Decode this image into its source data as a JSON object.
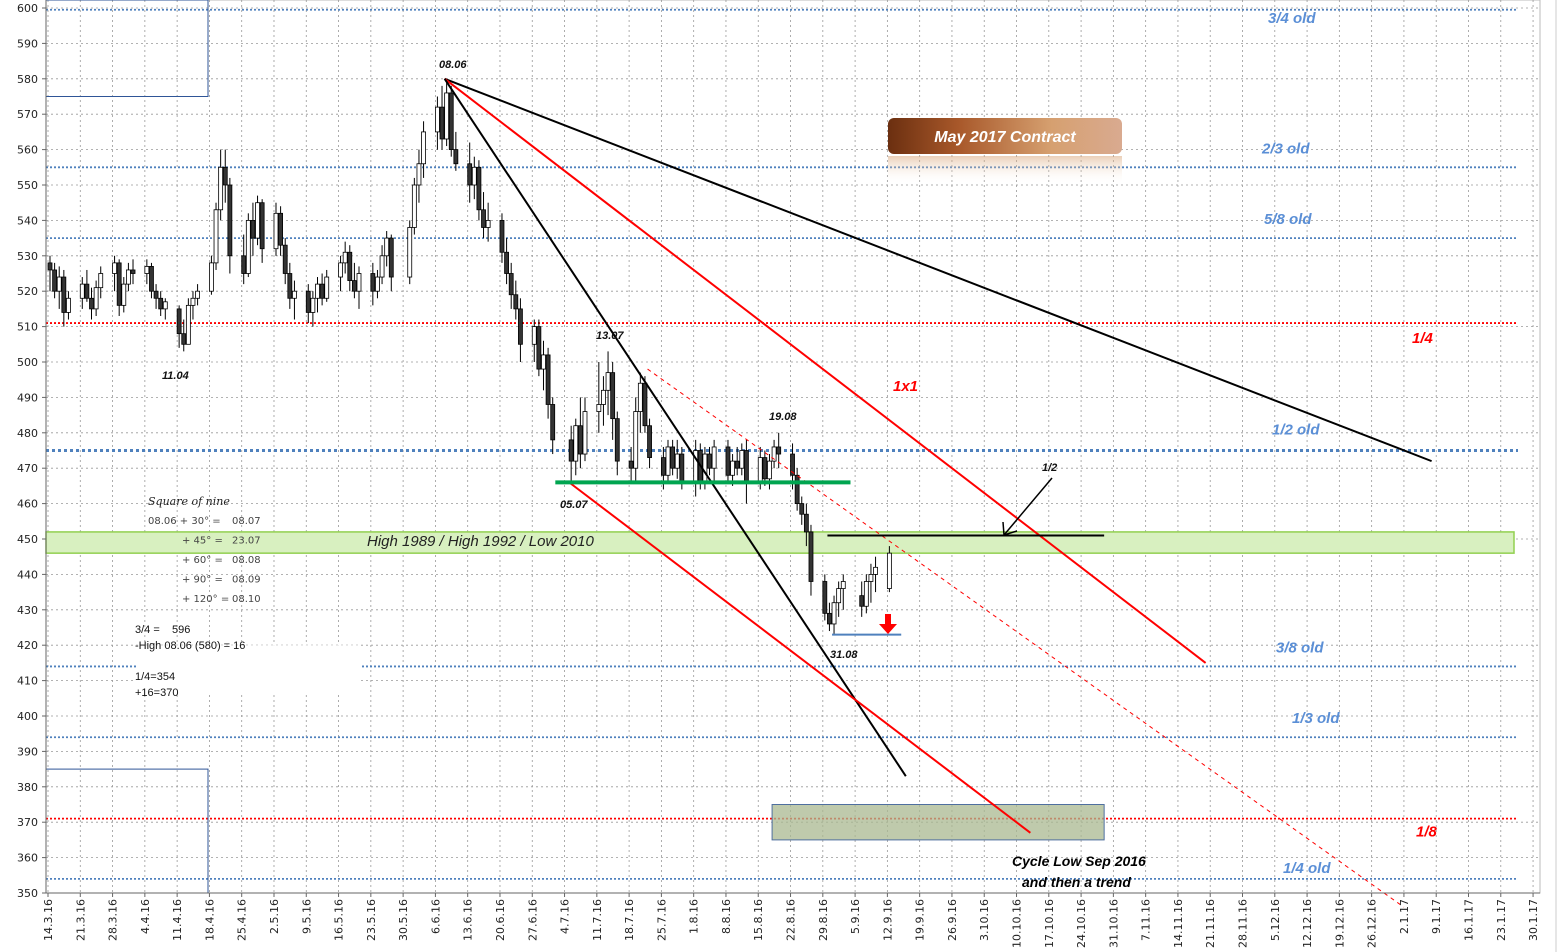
{
  "chart_data": {
    "type": "candlestick",
    "title": "May 2017 Contract",
    "ylim": [
      350,
      600
    ],
    "yticks": [
      350,
      360,
      370,
      380,
      390,
      400,
      410,
      420,
      430,
      440,
      450,
      460,
      470,
      480,
      490,
      500,
      510,
      520,
      530,
      540,
      550,
      560,
      570,
      580,
      590,
      600
    ],
    "xticks": [
      "14.3.16",
      "21.3.16",
      "28.3.16",
      "4.4.16",
      "11.4.16",
      "18.4.16",
      "25.4.16",
      "2.5.16",
      "9.5.16",
      "16.5.16",
      "23.5.16",
      "30.5.16",
      "6.6.16",
      "13.6.16",
      "20.6.16",
      "27.6.16",
      "4.7.16",
      "11.7.16",
      "18.7.16",
      "25.7.16",
      "1.8.16",
      "8.8.16",
      "15.8.16",
      "22.8.16",
      "29.8.16",
      "5.9.16",
      "12.9.16",
      "19.9.16",
      "26.9.16",
      "3.10.16",
      "10.10.16",
      "17.10.16",
      "24.10.16",
      "31.10.16",
      "7.11.16",
      "14.11.16",
      "21.11.16",
      "28.11.16",
      "5.12.16",
      "12.12.16",
      "19.12.16",
      "26.12.16",
      "2.1.17",
      "9.1.17",
      "16.1.17",
      "23.1.17",
      "30.1.17"
    ],
    "grid": true,
    "candles": [
      [
        "14.3.16",
        528,
        530,
        520,
        526
      ],
      [
        "15.3.16",
        526,
        528,
        518,
        520
      ],
      [
        "16.3.16",
        520,
        527,
        515,
        524
      ],
      [
        "17.3.16",
        524,
        526,
        510,
        514
      ],
      [
        "18.3.16",
        514,
        520,
        512,
        518
      ],
      [
        "21.3.16",
        518,
        524,
        515,
        522
      ],
      [
        "22.3.16",
        522,
        526,
        517,
        518
      ],
      [
        "23.3.16",
        518,
        521,
        512,
        515
      ],
      [
        "24.3.16",
        515,
        523,
        513,
        521
      ],
      [
        "25.3.16",
        521,
        527,
        518,
        525
      ],
      [
        "28.3.16",
        525,
        530,
        520,
        528
      ],
      [
        "29.3.16",
        528,
        529,
        513,
        516
      ],
      [
        "30.3.16",
        516,
        524,
        514,
        522
      ],
      [
        "31.3.16",
        522,
        528,
        520,
        526
      ],
      [
        "1.4.16",
        526,
        529,
        522,
        525
      ],
      [
        "4.4.16",
        525,
        529,
        522,
        527
      ],
      [
        "5.4.16",
        527,
        528,
        518,
        520
      ],
      [
        "6.4.16",
        520,
        522,
        515,
        518
      ],
      [
        "7.4.16",
        518,
        520,
        513,
        515
      ],
      [
        "8.4.16",
        515,
        518,
        512,
        517
      ],
      [
        "11.4.16",
        515,
        516,
        504,
        508
      ],
      [
        "12.4.16",
        508,
        512,
        503,
        505
      ],
      [
        "13.4.16",
        505,
        518,
        505,
        516
      ],
      [
        "14.4.16",
        516,
        520,
        512,
        518
      ],
      [
        "15.4.16",
        518,
        522,
        516,
        520
      ],
      [
        "18.4.16",
        520,
        530,
        519,
        528
      ],
      [
        "19.4.16",
        528,
        545,
        526,
        543
      ],
      [
        "20.4.16",
        543,
        560,
        540,
        555
      ],
      [
        "21.4.16",
        555,
        560,
        545,
        550
      ],
      [
        "22.4.16",
        550,
        552,
        525,
        530
      ],
      [
        "25.4.16",
        530,
        536,
        522,
        525
      ],
      [
        "26.4.16",
        525,
        542,
        524,
        540
      ],
      [
        "27.4.16",
        540,
        545,
        530,
        535
      ],
      [
        "28.4.16",
        535,
        547,
        533,
        545
      ],
      [
        "29.4.16",
        545,
        546,
        528,
        532
      ],
      [
        "2.5.16",
        532,
        545,
        530,
        542
      ],
      [
        "3.5.16",
        542,
        544,
        530,
        533
      ],
      [
        "4.5.16",
        533,
        535,
        522,
        525
      ],
      [
        "5.5.16",
        525,
        528,
        515,
        518
      ],
      [
        "6.5.16",
        518,
        523,
        512,
        520
      ],
      [
        "9.5.16",
        520,
        522,
        511,
        514
      ],
      [
        "10.5.16",
        514,
        520,
        510,
        518
      ],
      [
        "11.5.16",
        518,
        524,
        514,
        522
      ],
      [
        "12.5.16",
        522,
        525,
        516,
        518
      ],
      [
        "13.5.16",
        518,
        526,
        517,
        524
      ],
      [
        "16.5.16",
        524,
        530,
        520,
        528
      ],
      [
        "17.5.16",
        528,
        534,
        525,
        531
      ],
      [
        "18.5.16",
        531,
        533,
        520,
        523
      ],
      [
        "19.5.16",
        523,
        528,
        518,
        520
      ],
      [
        "20.5.16",
        520,
        527,
        515,
        525
      ],
      [
        "23.5.16",
        525,
        528,
        516,
        520
      ],
      [
        "24.5.16",
        520,
        526,
        518,
        524
      ],
      [
        "25.5.16",
        524,
        533,
        522,
        530
      ],
      [
        "26.5.16",
        530,
        537,
        527,
        535
      ],
      [
        "27.5.16",
        535,
        536,
        520,
        524
      ],
      [
        "31.5.16",
        524,
        540,
        522,
        538
      ],
      [
        "1.6.16",
        538,
        552,
        536,
        550
      ],
      [
        "2.6.16",
        550,
        560,
        545,
        556
      ],
      [
        "3.6.16",
        556,
        568,
        552,
        565
      ],
      [
        "6.6.16",
        565,
        575,
        560,
        572
      ],
      [
        "7.6.16",
        572,
        578,
        560,
        563
      ],
      [
        "8.6.16",
        563,
        580,
        561,
        576
      ],
      [
        "9.6.16",
        576,
        578,
        558,
        560
      ],
      [
        "10.6.16",
        560,
        565,
        554,
        556
      ],
      [
        "13.6.16",
        556,
        562,
        545,
        550
      ],
      [
        "14.6.16",
        550,
        558,
        546,
        555
      ],
      [
        "15.6.16",
        555,
        557,
        540,
        543
      ],
      [
        "16.6.16",
        543,
        548,
        535,
        538
      ],
      [
        "17.6.16",
        538,
        545,
        534,
        540
      ],
      [
        "20.6.16",
        540,
        542,
        528,
        531
      ],
      [
        "21.6.16",
        531,
        535,
        522,
        525
      ],
      [
        "22.6.16",
        525,
        528,
        515,
        519
      ],
      [
        "23.6.16",
        519,
        523,
        512,
        515
      ],
      [
        "24.6.16",
        515,
        518,
        500,
        505
      ],
      [
        "27.6.16",
        505,
        512,
        500,
        510
      ],
      [
        "28.6.16",
        510,
        512,
        496,
        498
      ],
      [
        "29.6.16",
        498,
        506,
        492,
        502
      ],
      [
        "30.6.16",
        502,
        504,
        484,
        488
      ],
      [
        "1.7.16",
        488,
        490,
        474,
        478
      ],
      [
        "5.7.16",
        478,
        482,
        466,
        472
      ],
      [
        "6.7.16",
        472,
        484,
        468,
        482
      ],
      [
        "7.7.16",
        482,
        490,
        470,
        474
      ],
      [
        "8.7.16",
        474,
        490,
        472,
        486
      ],
      [
        "11.7.16",
        486,
        500,
        480,
        488
      ],
      [
        "12.7.16",
        488,
        496,
        482,
        492
      ],
      [
        "13.7.16",
        492,
        503,
        485,
        497
      ],
      [
        "14.7.16",
        497,
        500,
        478,
        484
      ],
      [
        "15.7.16",
        484,
        486,
        468,
        472
      ],
      [
        "18.7.16",
        472,
        476,
        466,
        470
      ],
      [
        "19.7.16",
        470,
        490,
        466,
        486
      ],
      [
        "20.7.16",
        486,
        497,
        480,
        494
      ],
      [
        "21.7.16",
        494,
        496,
        480,
        482
      ],
      [
        "22.7.16",
        482,
        484,
        470,
        473
      ],
      [
        "25.7.16",
        473,
        476,
        464,
        468
      ],
      [
        "26.7.16",
        468,
        478,
        466,
        476
      ],
      [
        "27.7.16",
        476,
        478,
        468,
        470
      ],
      [
        "28.7.16",
        470,
        478,
        467,
        474
      ],
      [
        "29.7.16",
        474,
        476,
        464,
        466
      ],
      [
        "1.8.16",
        466,
        478,
        462,
        475
      ],
      [
        "2.8.16",
        475,
        477,
        464,
        466
      ],
      [
        "3.8.16",
        466,
        476,
        464,
        474
      ],
      [
        "4.8.16",
        474,
        476,
        468,
        470
      ],
      [
        "5.8.16",
        470,
        478,
        466,
        476
      ],
      [
        "8.8.16",
        476,
        478,
        466,
        468
      ],
      [
        "9.8.16",
        468,
        474,
        465,
        472
      ],
      [
        "10.8.16",
        472,
        476,
        468,
        470
      ],
      [
        "11.8.16",
        470,
        477,
        468,
        475
      ],
      [
        "12.8.16",
        475,
        478,
        460,
        466
      ],
      [
        "15.8.16",
        466,
        476,
        464,
        473
      ],
      [
        "16.8.16",
        473,
        475,
        465,
        467
      ],
      [
        "17.8.16",
        467,
        474,
        464,
        472
      ],
      [
        "18.8.16",
        472,
        478,
        470,
        476
      ],
      [
        "19.8.16",
        476,
        480,
        470,
        474
      ],
      [
        "22.8.16",
        474,
        477,
        464,
        468
      ],
      [
        "23.8.16",
        468,
        470,
        458,
        460
      ],
      [
        "24.8.16",
        460,
        462,
        454,
        457
      ],
      [
        "25.8.16",
        457,
        460,
        448,
        452
      ],
      [
        "26.8.16",
        452,
        454,
        434,
        438
      ],
      [
        "29.8.16",
        438,
        440,
        427,
        429
      ],
      [
        "30.8.16",
        429,
        432,
        424,
        426
      ],
      [
        "31.8.16",
        426,
        434,
        423,
        432
      ],
      [
        "1.9.16",
        432,
        438,
        428,
        436
      ],
      [
        "2.9.16",
        436,
        440,
        430,
        438
      ],
      [
        "6.9.16",
        434,
        438,
        428,
        431
      ],
      [
        "7.9.16",
        431,
        440,
        429,
        438
      ],
      [
        "8.9.16",
        438,
        443,
        432,
        440
      ],
      [
        "9.9.16",
        440,
        445,
        435,
        442
      ],
      [
        "12.9.16",
        436,
        448,
        435,
        446
      ]
    ],
    "levels": [
      {
        "label": "3/4 old",
        "value": 599.5,
        "color": "#4f81bd",
        "style": "dotted"
      },
      {
        "label": "2/3 old",
        "value": 555,
        "color": "#4f81bd",
        "style": "dotted"
      },
      {
        "label": "5/8 old",
        "value": 535,
        "color": "#4f81bd",
        "style": "dotted"
      },
      {
        "label": "1/4",
        "value": 511,
        "color": "#ff0000",
        "style": "dotted"
      },
      {
        "label": "1/2 old",
        "value": 475,
        "color": "#4f81bd",
        "style": "dotted-thick"
      },
      {
        "label": "3/8 old",
        "value": 414,
        "color": "#4f81bd",
        "style": "dotted"
      },
      {
        "label": "1/3 old",
        "value": 394,
        "color": "#4f81bd",
        "style": "dotted"
      },
      {
        "label": "1/8",
        "value": 371,
        "color": "#ff0000",
        "style": "dotted"
      },
      {
        "label": "1/4 old",
        "value": 354,
        "color": "#4f81bd",
        "style": "dotted"
      }
    ],
    "band": {
      "label": "High 1989 / High 1992 / Low 2010",
      "from": 446,
      "to": 452,
      "color": "#d8f0c0"
    },
    "trendlines": [
      {
        "from": [
          "8.6.16",
          580
        ],
        "to": [
          "8.1.17",
          472
        ],
        "color": "#000000"
      },
      {
        "from": [
          "8.6.16",
          580
        ],
        "to": [
          "20.11.16",
          415
        ],
        "color": "#ff0000",
        "label": "1x1"
      },
      {
        "from": [
          "8.6.16",
          580
        ],
        "to": [
          "16.9.16",
          383
        ],
        "color": "#000000"
      },
      {
        "from": [
          "5.7.16",
          466
        ],
        "to": [
          "13.10.16",
          367
        ],
        "color": "#ff0000"
      },
      {
        "from": [
          "22.7.16",
          498
        ],
        "to": [
          "2.1.17",
          346
        ],
        "color": "#ff0000",
        "dashed": true
      },
      {
        "from": [
          "2.7.16",
          466
        ],
        "to": [
          "4.9.16",
          466
        ],
        "color": "#00a550",
        "thick": true
      },
      {
        "from": [
          "30.8.16",
          451
        ],
        "to": [
          "29.10.16",
          451
        ],
        "color": "#000000"
      },
      {
        "from": [
          "31.8.16",
          423
        ],
        "to": [
          "15.9.16",
          423
        ],
        "color": "#4f81bd"
      }
    ],
    "target_box": {
      "from": [
        "18.8.16",
        365
      ],
      "to": [
        "29.10.16",
        375
      ]
    },
    "annotations": {
      "high": "08.06",
      "low_apr": "11.04",
      "jul13": "13.07",
      "jul05": "05.07",
      "aug19": "19.08",
      "aug31": "31.08",
      "half": "1/2",
      "cycle_1": "Cycle Low Sep 2016",
      "cycle_2": "and then a trend"
    },
    "square_of_nine": {
      "title": "Square of nine",
      "rows": [
        {
          "lhs": "08.06 + 30°",
          "rhs": "08.07",
          "red": true
        },
        {
          "lhs": "+ 45°",
          "rhs": "23.07",
          "red": true
        },
        {
          "lhs": "+ 60°",
          "rhs": "08.08",
          "red": true
        },
        {
          "lhs": "+ 90°",
          "rhs": "08.09",
          "red": false
        },
        {
          "lhs": "+ 120°",
          "rhs": "08.10",
          "red": false
        }
      ]
    },
    "notes": [
      "3/4 =    596",
      "-High 08.06 (580) = 16",
      "1/4=354",
      "+16=370"
    ]
  }
}
